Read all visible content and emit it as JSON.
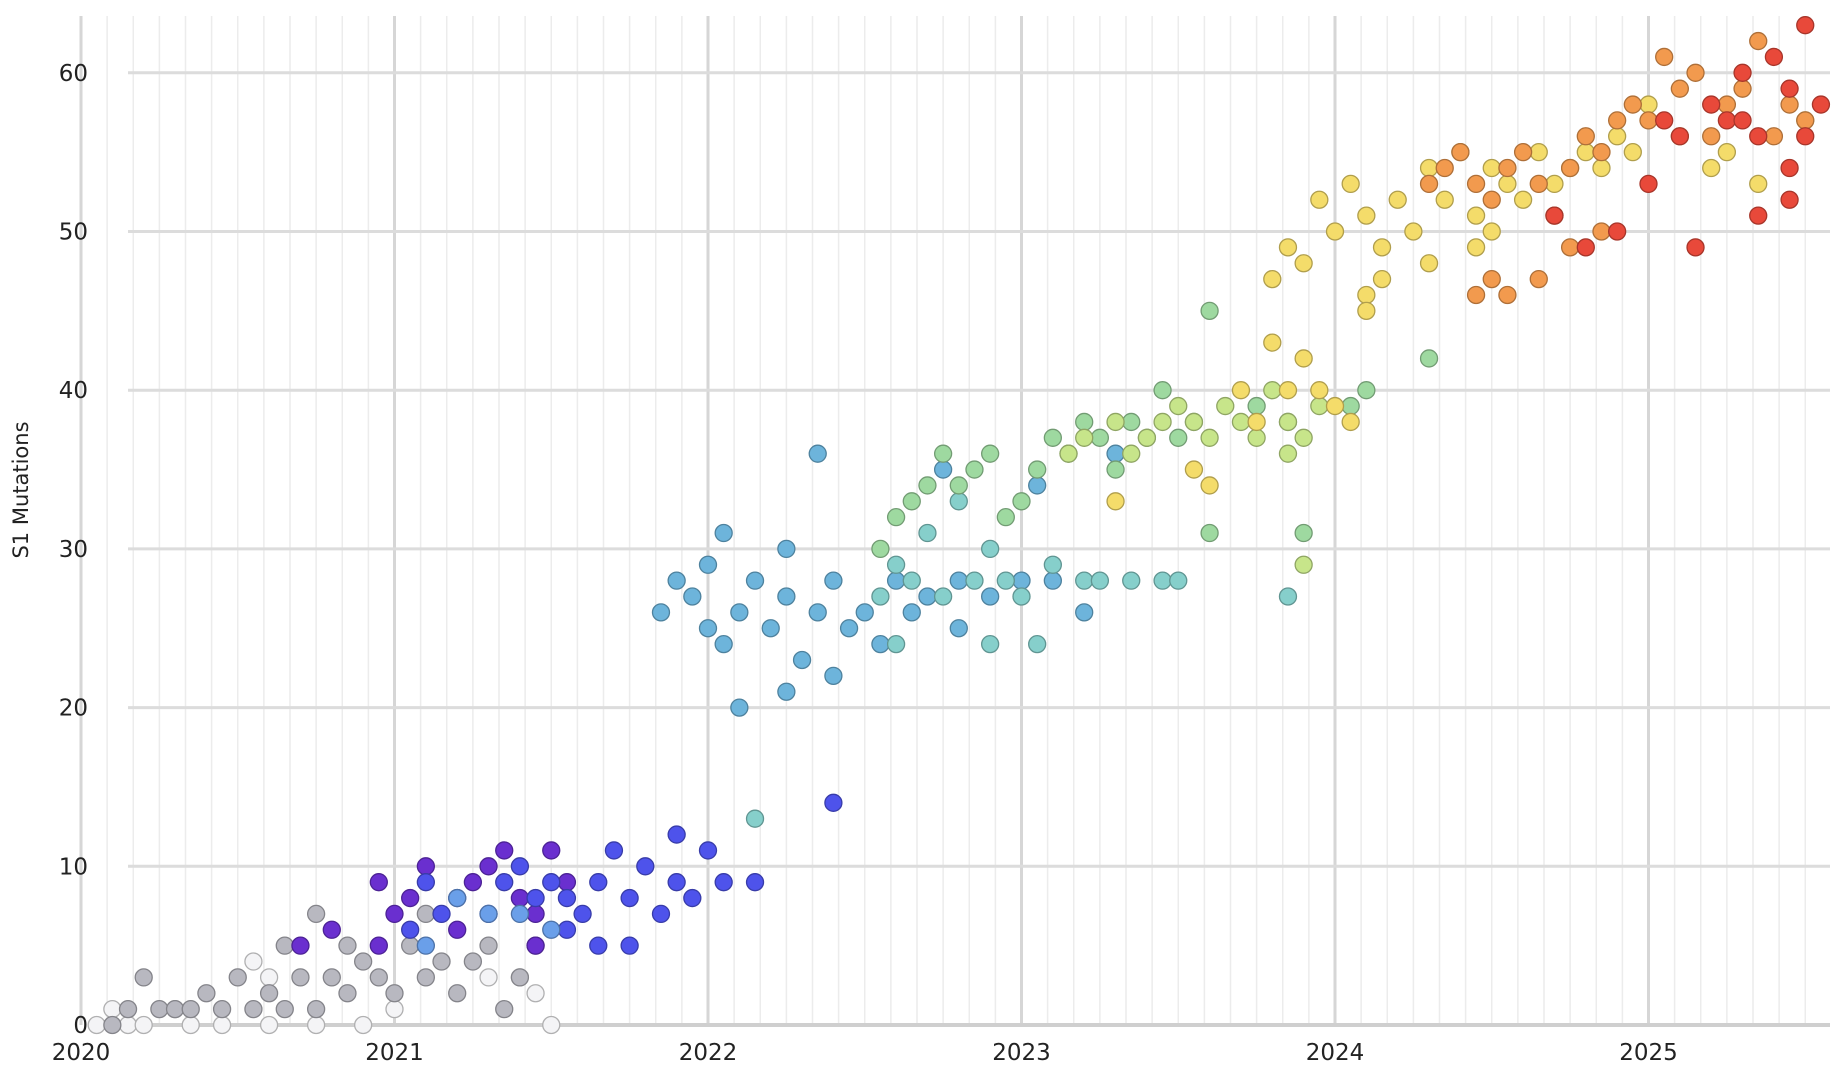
{
  "chart_data": {
    "type": "scatter",
    "title": "",
    "xlabel": "",
    "ylabel": "S1 Mutations",
    "xlim": [
      2020.0,
      2025.55
    ],
    "ylim": [
      0,
      63
    ],
    "x_ticks": [
      "2020",
      "2021",
      "2022",
      "2023",
      "2024",
      "2025"
    ],
    "y_ticks": [
      "0",
      "10",
      "20",
      "30",
      "40",
      "50",
      "60"
    ],
    "grid": true,
    "legend": "none",
    "series": [
      {
        "color": "#f4f4f6",
        "points": [
          [
            2020.05,
            0
          ],
          [
            2020.1,
            1
          ],
          [
            2020.15,
            0
          ],
          [
            2020.2,
            0
          ],
          [
            2020.3,
            1
          ],
          [
            2020.35,
            0
          ],
          [
            2020.45,
            0
          ],
          [
            2020.6,
            0
          ],
          [
            2020.75,
            0
          ],
          [
            2020.9,
            0
          ],
          [
            2021.0,
            1
          ],
          [
            2021.3,
            3
          ],
          [
            2021.4,
            3
          ],
          [
            2021.5,
            0
          ],
          [
            2021.45,
            2
          ],
          [
            2020.6,
            3
          ],
          [
            2020.55,
            4
          ]
        ]
      },
      {
        "color": "#b8b8c0",
        "points": [
          [
            2020.1,
            0
          ],
          [
            2020.15,
            1
          ],
          [
            2020.2,
            3
          ],
          [
            2020.25,
            1
          ],
          [
            2020.3,
            1
          ],
          [
            2020.35,
            1
          ],
          [
            2020.4,
            2
          ],
          [
            2020.45,
            1
          ],
          [
            2020.5,
            3
          ],
          [
            2020.55,
            1
          ],
          [
            2020.6,
            2
          ],
          [
            2020.65,
            1
          ],
          [
            2020.7,
            3
          ],
          [
            2020.75,
            1
          ],
          [
            2020.8,
            3
          ],
          [
            2020.85,
            2
          ],
          [
            2020.9,
            4
          ],
          [
            2020.95,
            3
          ],
          [
            2021.0,
            2
          ],
          [
            2021.05,
            5
          ],
          [
            2021.1,
            3
          ],
          [
            2021.15,
            4
          ],
          [
            2021.2,
            2
          ],
          [
            2021.25,
            4
          ],
          [
            2021.3,
            5
          ],
          [
            2021.35,
            1
          ],
          [
            2021.4,
            3
          ],
          [
            2021.45,
            5
          ],
          [
            2020.65,
            5
          ],
          [
            2020.75,
            7
          ],
          [
            2020.85,
            5
          ],
          [
            2021.1,
            7
          ]
        ]
      },
      {
        "color": "#6a2fcf",
        "points": [
          [
            2020.7,
            5
          ],
          [
            2020.8,
            6
          ],
          [
            2020.95,
            5
          ],
          [
            2020.95,
            9
          ],
          [
            2021.0,
            7
          ],
          [
            2021.05,
            8
          ],
          [
            2021.1,
            10
          ],
          [
            2021.2,
            6
          ],
          [
            2021.25,
            9
          ],
          [
            2021.3,
            10
          ],
          [
            2021.35,
            11
          ],
          [
            2021.4,
            8
          ],
          [
            2021.45,
            7
          ],
          [
            2021.5,
            11
          ],
          [
            2021.55,
            9
          ],
          [
            2021.45,
            5
          ]
        ]
      },
      {
        "color": "#4e53eb",
        "points": [
          [
            2021.05,
            6
          ],
          [
            2021.1,
            9
          ],
          [
            2021.15,
            7
          ],
          [
            2021.2,
            8
          ],
          [
            2021.3,
            7
          ],
          [
            2021.35,
            9
          ],
          [
            2021.4,
            10
          ],
          [
            2021.45,
            8
          ],
          [
            2021.5,
            9
          ],
          [
            2021.55,
            8
          ],
          [
            2021.6,
            7
          ],
          [
            2021.65,
            9
          ],
          [
            2021.7,
            11
          ],
          [
            2021.75,
            8
          ],
          [
            2021.8,
            10
          ],
          [
            2021.85,
            7
          ],
          [
            2021.9,
            9
          ],
          [
            2021.95,
            8
          ],
          [
            2021.75,
            5
          ],
          [
            2021.65,
            5
          ],
          [
            2021.55,
            6
          ],
          [
            2022.05,
            9
          ],
          [
            2022.15,
            9
          ],
          [
            2022.4,
            14
          ],
          [
            2021.9,
            12
          ],
          [
            2022.0,
            11
          ]
        ]
      },
      {
        "color": "#6a9fe9",
        "points": [
          [
            2021.1,
            5
          ],
          [
            2021.2,
            8
          ],
          [
            2021.3,
            7
          ],
          [
            2021.4,
            7
          ],
          [
            2021.5,
            6
          ]
        ]
      },
      {
        "color": "#6db4db",
        "points": [
          [
            2021.85,
            26
          ],
          [
            2021.9,
            28
          ],
          [
            2021.95,
            27
          ],
          [
            2022.0,
            25
          ],
          [
            2022.0,
            29
          ],
          [
            2022.05,
            24
          ],
          [
            2022.1,
            26
          ],
          [
            2022.15,
            28
          ],
          [
            2022.2,
            25
          ],
          [
            2022.25,
            27
          ],
          [
            2022.3,
            23
          ],
          [
            2022.35,
            26
          ],
          [
            2022.4,
            28
          ],
          [
            2022.45,
            25
          ],
          [
            2022.5,
            26
          ],
          [
            2022.55,
            24
          ],
          [
            2022.6,
            28
          ],
          [
            2022.65,
            26
          ],
          [
            2022.7,
            27
          ],
          [
            2022.8,
            28
          ],
          [
            2022.9,
            27
          ],
          [
            2023.0,
            28
          ],
          [
            2023.1,
            28
          ],
          [
            2023.2,
            26
          ],
          [
            2022.05,
            31
          ],
          [
            2022.25,
            30
          ],
          [
            2022.35,
            36
          ],
          [
            2022.1,
            20
          ],
          [
            2022.25,
            21
          ],
          [
            2022.4,
            22
          ],
          [
            2022.75,
            35
          ],
          [
            2022.8,
            25
          ],
          [
            2023.05,
            34
          ],
          [
            2023.3,
            36
          ]
        ]
      },
      {
        "color": "#86cfcb",
        "points": [
          [
            2022.55,
            27
          ],
          [
            2022.6,
            29
          ],
          [
            2022.65,
            28
          ],
          [
            2022.7,
            31
          ],
          [
            2022.75,
            27
          ],
          [
            2022.8,
            33
          ],
          [
            2022.85,
            28
          ],
          [
            2022.9,
            30
          ],
          [
            2022.95,
            28
          ],
          [
            2023.0,
            27
          ],
          [
            2023.1,
            29
          ],
          [
            2023.2,
            28
          ],
          [
            2023.25,
            28
          ],
          [
            2023.35,
            28
          ],
          [
            2023.45,
            28
          ],
          [
            2023.5,
            28
          ],
          [
            2022.9,
            24
          ],
          [
            2023.05,
            24
          ],
          [
            2022.6,
            24
          ],
          [
            2022.15,
            13
          ],
          [
            2023.85,
            27
          ]
        ]
      },
      {
        "color": "#9ed9a0",
        "points": [
          [
            2022.55,
            30
          ],
          [
            2022.6,
            32
          ],
          [
            2022.65,
            33
          ],
          [
            2022.7,
            34
          ],
          [
            2022.75,
            36
          ],
          [
            2022.8,
            34
          ],
          [
            2022.85,
            35
          ],
          [
            2022.9,
            36
          ],
          [
            2022.95,
            32
          ],
          [
            2023.0,
            33
          ],
          [
            2023.05,
            35
          ],
          [
            2023.1,
            37
          ],
          [
            2023.15,
            36
          ],
          [
            2023.2,
            38
          ],
          [
            2023.25,
            37
          ],
          [
            2023.3,
            35
          ],
          [
            2023.35,
            38
          ],
          [
            2023.4,
            37
          ],
          [
            2023.45,
            40
          ],
          [
            2023.5,
            37
          ],
          [
            2023.55,
            38
          ],
          [
            2023.6,
            45
          ],
          [
            2023.6,
            31
          ],
          [
            2023.75,
            39
          ],
          [
            2023.85,
            38
          ],
          [
            2023.9,
            31
          ],
          [
            2024.05,
            39
          ],
          [
            2024.1,
            40
          ],
          [
            2024.3,
            42
          ]
        ]
      },
      {
        "color": "#c7e58a",
        "points": [
          [
            2023.15,
            36
          ],
          [
            2023.2,
            37
          ],
          [
            2023.3,
            38
          ],
          [
            2023.35,
            36
          ],
          [
            2023.4,
            37
          ],
          [
            2023.45,
            38
          ],
          [
            2023.5,
            39
          ],
          [
            2023.55,
            38
          ],
          [
            2023.6,
            37
          ],
          [
            2023.65,
            39
          ],
          [
            2023.7,
            38
          ],
          [
            2023.75,
            37
          ],
          [
            2023.8,
            40
          ],
          [
            2023.85,
            38
          ],
          [
            2023.9,
            37
          ],
          [
            2023.95,
            39
          ],
          [
            2023.9,
            29
          ],
          [
            2023.85,
            36
          ]
        ]
      },
      {
        "color": "#f4dc6a",
        "points": [
          [
            2023.3,
            33
          ],
          [
            2023.55,
            35
          ],
          [
            2023.6,
            34
          ],
          [
            2023.7,
            40
          ],
          [
            2023.75,
            38
          ],
          [
            2023.8,
            43
          ],
          [
            2023.85,
            40
          ],
          [
            2023.9,
            42
          ],
          [
            2023.95,
            40
          ],
          [
            2024.0,
            39
          ],
          [
            2024.05,
            38
          ],
          [
            2023.8,
            47
          ],
          [
            2023.85,
            49
          ],
          [
            2023.9,
            48
          ],
          [
            2023.95,
            52
          ],
          [
            2024.0,
            50
          ],
          [
            2024.05,
            53
          ],
          [
            2024.1,
            51
          ],
          [
            2024.15,
            49
          ],
          [
            2024.2,
            52
          ],
          [
            2024.25,
            50
          ],
          [
            2024.3,
            54
          ],
          [
            2024.35,
            52
          ],
          [
            2024.4,
            55
          ],
          [
            2024.45,
            51
          ],
          [
            2024.5,
            54
          ],
          [
            2024.55,
            53
          ],
          [
            2024.6,
            52
          ],
          [
            2024.65,
            55
          ],
          [
            2024.7,
            53
          ],
          [
            2024.75,
            54
          ],
          [
            2024.8,
            55
          ],
          [
            2024.85,
            54
          ],
          [
            2024.9,
            56
          ],
          [
            2024.95,
            55
          ],
          [
            2025.0,
            58
          ],
          [
            2025.1,
            56
          ],
          [
            2025.2,
            54
          ],
          [
            2025.25,
            55
          ],
          [
            2025.35,
            53
          ],
          [
            2024.1,
            46
          ],
          [
            2024.1,
            45
          ],
          [
            2024.15,
            47
          ],
          [
            2024.3,
            48
          ],
          [
            2024.45,
            49
          ],
          [
            2024.5,
            50
          ],
          [
            2025.5,
            57
          ]
        ]
      },
      {
        "color": "#f29a4e",
        "points": [
          [
            2024.3,
            53
          ],
          [
            2024.35,
            54
          ],
          [
            2024.4,
            55
          ],
          [
            2024.45,
            53
          ],
          [
            2024.5,
            52
          ],
          [
            2024.55,
            54
          ],
          [
            2024.6,
            55
          ],
          [
            2024.65,
            53
          ],
          [
            2024.7,
            51
          ],
          [
            2024.75,
            54
          ],
          [
            2024.8,
            56
          ],
          [
            2024.85,
            55
          ],
          [
            2024.9,
            57
          ],
          [
            2024.95,
            58
          ],
          [
            2025.0,
            57
          ],
          [
            2025.05,
            61
          ],
          [
            2025.1,
            59
          ],
          [
            2025.15,
            60
          ],
          [
            2025.2,
            56
          ],
          [
            2025.25,
            58
          ],
          [
            2025.3,
            59
          ],
          [
            2025.35,
            62
          ],
          [
            2025.4,
            56
          ],
          [
            2025.45,
            58
          ],
          [
            2025.5,
            57
          ],
          [
            2024.45,
            46
          ],
          [
            2024.5,
            47
          ],
          [
            2024.55,
            46
          ],
          [
            2024.65,
            47
          ],
          [
            2024.75,
            49
          ],
          [
            2024.85,
            50
          ]
        ]
      },
      {
        "color": "#e8493a",
        "points": [
          [
            2024.7,
            51
          ],
          [
            2024.8,
            49
          ],
          [
            2024.9,
            50
          ],
          [
            2025.0,
            53
          ],
          [
            2025.05,
            57
          ],
          [
            2025.1,
            56
          ],
          [
            2025.15,
            49
          ],
          [
            2025.2,
            58
          ],
          [
            2025.25,
            57
          ],
          [
            2025.3,
            60
          ],
          [
            2025.35,
            56
          ],
          [
            2025.4,
            61
          ],
          [
            2025.45,
            59
          ],
          [
            2025.5,
            63
          ],
          [
            2025.5,
            56
          ],
          [
            2025.55,
            58
          ],
          [
            2025.45,
            54
          ],
          [
            2025.45,
            52
          ],
          [
            2025.35,
            51
          ],
          [
            2025.3,
            57
          ]
        ]
      }
    ]
  }
}
